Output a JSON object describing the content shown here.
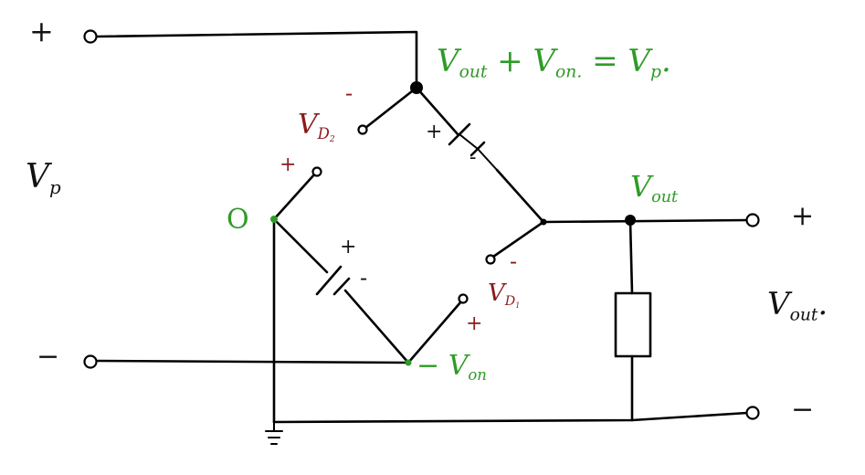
{
  "colors": {
    "ink": "#111111",
    "red": "#8b1a1a",
    "green": "#2f9b27"
  },
  "input": {
    "plus": "+",
    "minus": "−",
    "label_main": "V",
    "label_sub": "p"
  },
  "output": {
    "plus": "+",
    "minus": "−",
    "label_main": "V",
    "label_sub": "out",
    "label_tail": "."
  },
  "equation": {
    "text": "V",
    "out_sub": "out",
    "plus": "+",
    "von_main": "V",
    "von_sub": "on.",
    "eq": "=",
    "vp_main": "V",
    "vp_sub": "p",
    "tail": "."
  },
  "node_labels": {
    "zero": "O",
    "vout_main": "V",
    "vout_sub": "out",
    "vminus_sign": "−",
    "vminus_main": "V",
    "vminus_sub": "on"
  },
  "diode_d2": {
    "label_main": "V",
    "label_sub": "D",
    "label_sub2": "2",
    "plus": "+",
    "minus": "-"
  },
  "diode_d1": {
    "label_main": "V",
    "label_sub": "D",
    "label_sub2": "1",
    "plus": "+",
    "minus": "-"
  },
  "battery_top": {
    "plus": "+",
    "minus": "-"
  },
  "battery_left": {
    "plus": "+",
    "minus": "-"
  }
}
